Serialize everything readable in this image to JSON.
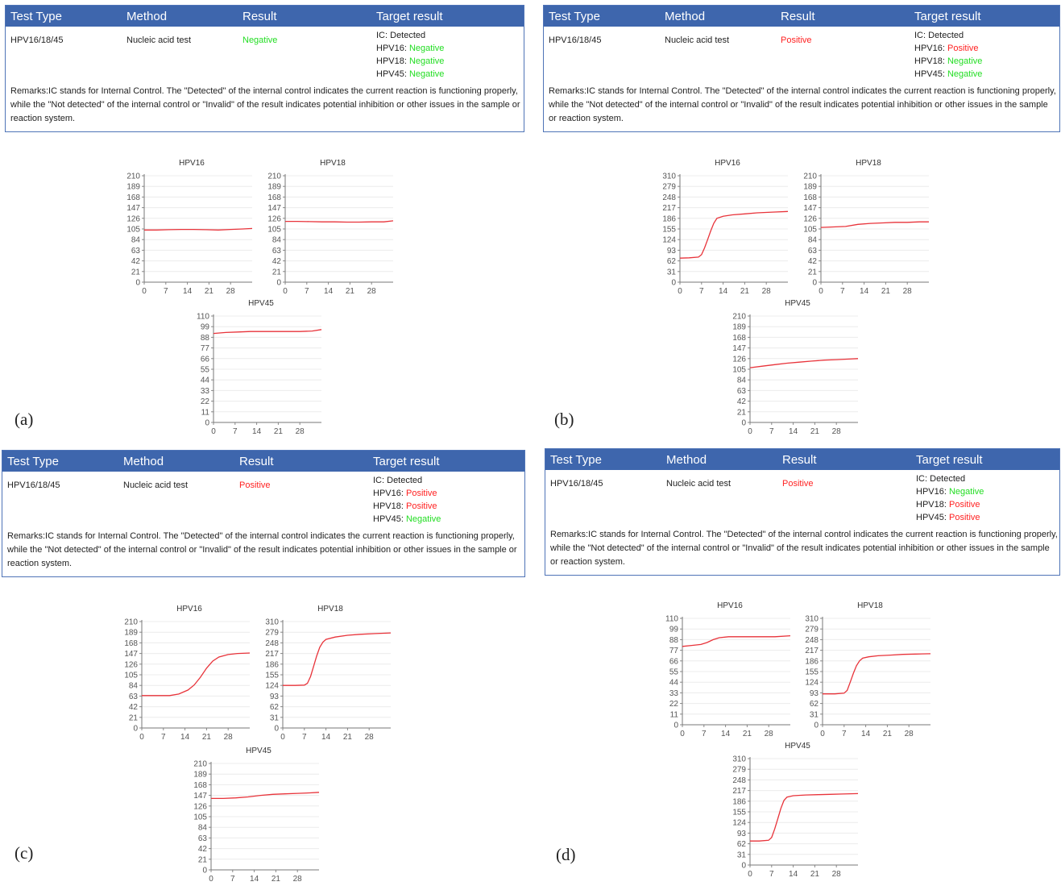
{
  "headers": [
    "Test Type",
    "Method",
    "Result",
    "Target result"
  ],
  "remarks": "Remarks:IC stands for Internal Control. The \"Detected\" of the internal control indicates the current reaction is functioning properly, while the \"Not detected\" of the internal control or \"Invalid\" of the result indicates potential inhibition or other issues in the sample or reaction system.",
  "colors": {
    "header_bg": "#3e66ad",
    "negative": "#22dd22",
    "positive": "#ff2222",
    "curve": "#e8333a"
  },
  "x_ticks": [
    "0",
    "7",
    "14",
    "21",
    "28"
  ],
  "panels": [
    {
      "label": "(a)",
      "test_type": "HPV16/18/45",
      "method": "Nucleic acid test",
      "result": "Negative",
      "result_status": "negative",
      "targets": [
        {
          "name": "IC:",
          "value": "Detected",
          "status": "neutral"
        },
        {
          "name": "HPV16:",
          "value": "Negative",
          "status": "negative"
        },
        {
          "name": "HPV18:",
          "value": "Negative",
          "status": "negative"
        },
        {
          "name": "HPV45:",
          "value": "Negative",
          "status": "negative"
        }
      ],
      "charts": [
        {
          "title": "HPV16",
          "y_ticks": [
            "0",
            "21",
            "42",
            "63",
            "84",
            "105",
            "126",
            "147",
            "168",
            "189",
            "210"
          ],
          "ymax": 210,
          "x": [
            0,
            4,
            8,
            12,
            16,
            20,
            24,
            28,
            32,
            35
          ],
          "y": [
            103,
            103,
            103.5,
            104,
            104,
            103.5,
            103,
            104,
            105,
            106
          ]
        },
        {
          "title": "HPV18",
          "y_ticks": [
            "0",
            "21",
            "42",
            "63",
            "84",
            "105",
            "126",
            "147",
            "168",
            "189",
            "210"
          ],
          "ymax": 210,
          "x": [
            0,
            4,
            8,
            12,
            16,
            20,
            24,
            28,
            32,
            35
          ],
          "y": [
            120,
            120,
            119.5,
            119,
            119,
            118.5,
            118.5,
            119,
            119,
            121
          ]
        },
        {
          "title": "HPV45",
          "y_ticks": [
            "0",
            "11",
            "22",
            "33",
            "44",
            "55",
            "66",
            "77",
            "88",
            "99",
            "110"
          ],
          "ymax": 110,
          "x": [
            0,
            4,
            8,
            12,
            16,
            20,
            24,
            28,
            32,
            35
          ],
          "y": [
            92,
            93,
            93.5,
            94,
            94,
            94,
            94,
            94,
            94.5,
            96
          ]
        }
      ]
    },
    {
      "label": "(b)",
      "test_type": "HPV16/18/45",
      "method": "Nucleic acid test",
      "result": "Positive",
      "result_status": "positive",
      "targets": [
        {
          "name": "IC:",
          "value": "Detected",
          "status": "neutral"
        },
        {
          "name": "HPV16:",
          "value": "Positive",
          "status": "positive"
        },
        {
          "name": "HPV18:",
          "value": "Negative",
          "status": "negative"
        },
        {
          "name": "HPV45:",
          "value": "Negative",
          "status": "negative"
        }
      ],
      "charts": [
        {
          "title": "HPV16",
          "y_ticks": [
            "0",
            "31",
            "62",
            "93",
            "124",
            "155",
            "186",
            "217",
            "248",
            "279",
            "310"
          ],
          "ymax": 310,
          "x": [
            0,
            3,
            6,
            7,
            8,
            9,
            10,
            11,
            12,
            14,
            17,
            21,
            25,
            30,
            35
          ],
          "y": [
            70,
            71,
            73,
            80,
            100,
            125,
            150,
            172,
            186,
            192,
            196,
            199,
            202,
            204,
            206
          ]
        },
        {
          "title": "HPV18",
          "y_ticks": [
            "0",
            "21",
            "42",
            "63",
            "84",
            "105",
            "126",
            "147",
            "168",
            "189",
            "210"
          ],
          "ymax": 210,
          "x": [
            0,
            4,
            8,
            12,
            16,
            20,
            24,
            28,
            32,
            35
          ],
          "y": [
            108,
            109,
            110,
            114,
            116,
            117,
            118,
            118,
            119,
            119
          ]
        },
        {
          "title": "HPV45",
          "y_ticks": [
            "0",
            "21",
            "42",
            "63",
            "84",
            "105",
            "126",
            "147",
            "168",
            "189",
            "210"
          ],
          "ymax": 210,
          "x": [
            0,
            4,
            8,
            12,
            16,
            20,
            24,
            28,
            32,
            35
          ],
          "y": [
            108,
            111,
            114,
            117,
            119,
            121,
            123,
            124,
            125,
            126
          ]
        }
      ]
    },
    {
      "label": "(c)",
      "test_type": "HPV16/18/45",
      "method": "Nucleic acid test",
      "result": "Positive",
      "result_status": "positive",
      "targets": [
        {
          "name": "IC:",
          "value": "Detected",
          "status": "neutral"
        },
        {
          "name": "HPV16:",
          "value": "Positive",
          "status": "positive"
        },
        {
          "name": "HPV18:",
          "value": "Positive",
          "status": "positive"
        },
        {
          "name": "HPV45:",
          "value": "Negative",
          "status": "negative"
        }
      ],
      "charts": [
        {
          "title": "HPV16",
          "y_ticks": [
            "0",
            "21",
            "42",
            "63",
            "84",
            "105",
            "126",
            "147",
            "168",
            "189",
            "210"
          ],
          "ymax": 210,
          "x": [
            0,
            5,
            9,
            12,
            15,
            17,
            19,
            21,
            23,
            25,
            28,
            31,
            35
          ],
          "y": [
            64,
            64,
            64,
            67,
            75,
            85,
            100,
            118,
            132,
            140,
            145,
            147,
            148
          ]
        },
        {
          "title": "HPV18",
          "y_ticks": [
            "0",
            "31",
            "62",
            "93",
            "124",
            "155",
            "186",
            "217",
            "248",
            "279",
            "310"
          ],
          "ymax": 310,
          "x": [
            0,
            4,
            7,
            8,
            9,
            10,
            11,
            12,
            13,
            14,
            17,
            21,
            25,
            30,
            35
          ],
          "y": [
            124,
            124,
            125,
            130,
            150,
            180,
            210,
            235,
            250,
            258,
            265,
            270,
            273,
            275,
            277
          ]
        },
        {
          "title": "HPV45",
          "y_ticks": [
            "0",
            "21",
            "42",
            "63",
            "84",
            "105",
            "126",
            "147",
            "168",
            "189",
            "210"
          ],
          "ymax": 210,
          "x": [
            0,
            4,
            8,
            12,
            16,
            20,
            24,
            28,
            32,
            35
          ],
          "y": [
            141,
            141,
            142,
            144,
            147,
            149,
            150,
            151,
            152,
            153
          ]
        }
      ]
    },
    {
      "label": "(d)",
      "test_type": "HPV16/18/45",
      "method": "Nucleic acid test",
      "result": "Positive",
      "result_status": "positive",
      "targets": [
        {
          "name": "IC:",
          "value": "Detected",
          "status": "neutral"
        },
        {
          "name": "HPV16:",
          "value": "Negative",
          "status": "negative"
        },
        {
          "name": "HPV18:",
          "value": "Positive",
          "status": "positive"
        },
        {
          "name": "HPV45:",
          "value": "Positive",
          "status": "positive"
        }
      ],
      "charts": [
        {
          "title": "HPV16",
          "y_ticks": [
            "0",
            "11",
            "22",
            "33",
            "44",
            "55",
            "66",
            "77",
            "88",
            "99",
            "110"
          ],
          "ymax": 110,
          "x": [
            0,
            3,
            6,
            8,
            10,
            12,
            15,
            20,
            25,
            30,
            35
          ],
          "y": [
            81,
            82,
            83,
            85,
            88,
            90,
            91,
            91,
            91,
            91,
            92
          ]
        },
        {
          "title": "HPV18",
          "y_ticks": [
            "0",
            "31",
            "62",
            "93",
            "124",
            "155",
            "186",
            "217",
            "248",
            "279",
            "310"
          ],
          "ymax": 310,
          "x": [
            0,
            4,
            7,
            8,
            9,
            10,
            11,
            12,
            13,
            15,
            18,
            22,
            26,
            30,
            35
          ],
          "y": [
            90,
            90,
            92,
            100,
            125,
            150,
            172,
            186,
            194,
            198,
            201,
            203,
            205,
            206,
            207
          ]
        },
        {
          "title": "HPV45",
          "y_ticks": [
            "0",
            "31",
            "62",
            "93",
            "124",
            "155",
            "186",
            "217",
            "248",
            "279",
            "310"
          ],
          "ymax": 310,
          "x": [
            0,
            3,
            6,
            7,
            8,
            9,
            10,
            11,
            12,
            14,
            18,
            22,
            26,
            30,
            35
          ],
          "y": [
            70,
            70,
            72,
            80,
            105,
            135,
            165,
            188,
            198,
            202,
            204,
            205,
            206,
            207,
            208
          ]
        }
      ]
    }
  ]
}
